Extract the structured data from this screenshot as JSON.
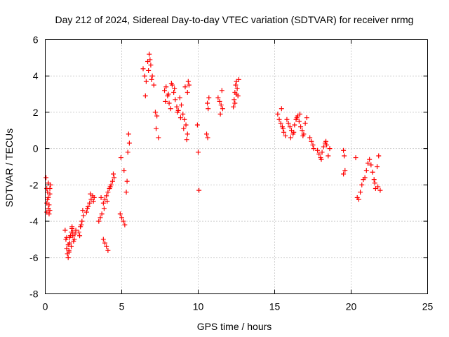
{
  "chart_data": {
    "type": "scatter",
    "title": "Day 212 of 2024, Sidereal Day-to-day VTEC variation (SDTVAR) for receiver nrmg",
    "xlabel": "GPS time / hours",
    "ylabel": "SDTVAR / TECUs",
    "xlim": [
      0,
      25
    ],
    "ylim": [
      -8,
      6
    ],
    "x_ticks": [
      0,
      5,
      10,
      15,
      20,
      25
    ],
    "y_ticks": [
      -8,
      -6,
      -4,
      -2,
      0,
      2,
      4,
      6
    ],
    "x_tick_labels": [
      "0",
      "5",
      "10",
      "15",
      "20",
      "25"
    ],
    "y_tick_labels": [
      "-8",
      "-6",
      "-4",
      "-2",
      "0",
      "2",
      "4",
      "6"
    ],
    "grid": true,
    "marker": "+",
    "color": "#ff0000",
    "series": [
      {
        "name": "SDTVAR",
        "x": [
          0.05,
          0.1,
          0.15,
          0.2,
          0.25,
          0.3,
          0.35,
          0.1,
          0.2,
          0.3,
          0.15,
          0.25,
          0.2,
          0.1,
          0.3,
          1.3,
          1.35,
          1.4,
          1.45,
          1.5,
          1.55,
          1.6,
          1.65,
          1.7,
          1.75,
          1.8,
          1.85,
          1.9,
          1.95,
          2.0,
          1.5,
          1.6,
          1.7,
          1.8,
          1.4,
          1.55,
          1.75,
          2.2,
          2.3,
          2.4,
          2.5,
          2.25,
          2.35,
          2.45,
          2.7,
          2.8,
          2.9,
          3.0,
          3.1,
          3.2,
          2.75,
          2.95,
          3.15,
          3.5,
          3.6,
          3.7,
          3.8,
          3.9,
          4.0,
          4.1,
          4.2,
          4.3,
          4.4,
          4.5,
          4.05,
          4.25,
          4.45,
          3.65,
          3.85,
          3.8,
          3.9,
          4.0,
          4.1,
          4.9,
          5.0,
          5.1,
          5.2,
          4.95,
          5.15,
          5.35,
          5.4,
          5.5,
          5.3,
          5.45,
          6.4,
          6.5,
          6.6,
          6.7,
          6.8,
          6.9,
          7.0,
          7.1,
          6.55,
          6.75,
          6.95,
          6.85,
          7.2,
          7.3,
          7.25,
          7.4,
          7.8,
          7.9,
          8.0,
          8.1,
          8.2,
          8.3,
          8.4,
          8.5,
          8.6,
          8.7,
          8.8,
          8.9,
          9.0,
          9.1,
          9.2,
          9.3,
          7.85,
          8.05,
          8.25,
          8.45,
          8.65,
          8.85,
          9.05,
          9.25,
          9.35,
          9.15,
          9.3,
          9.4,
          9.95,
          10.0,
          10.05,
          10.6,
          10.65,
          10.7,
          10.55,
          10.62,
          11.3,
          11.4,
          11.5,
          11.6,
          11.55,
          11.45,
          12.3,
          12.35,
          12.4,
          12.45,
          12.5,
          12.55,
          12.6,
          12.65,
          12.4,
          12.5,
          15.2,
          15.3,
          15.4,
          15.5,
          15.6,
          15.7,
          15.45,
          15.55,
          15.8,
          15.9,
          16.0,
          16.1,
          16.2,
          16.3,
          16.4,
          16.5,
          16.6,
          16.7,
          16.8,
          16.9,
          17.0,
          17.1,
          16.05,
          16.25,
          16.45,
          16.65,
          16.85,
          17.3,
          17.4,
          17.5,
          17.55,
          17.8,
          17.9,
          18.0,
          18.1,
          18.2,
          18.3,
          18.4,
          18.5,
          18.6,
          18.05,
          18.35,
          19.5,
          19.55,
          19.6,
          19.5,
          20.3,
          20.4,
          20.5,
          20.6,
          20.7,
          20.8,
          20.9,
          21.0,
          21.1,
          21.2,
          21.3,
          21.4,
          21.5,
          21.6,
          21.7,
          21.8,
          21.9,
          21.55,
          21.75
        ],
        "y": [
          -1.6,
          -2.2,
          -2.8,
          -3.3,
          -3.6,
          -2.5,
          -2.0,
          -3.0,
          -1.9,
          -3.4,
          -2.4,
          -3.1,
          -2.7,
          -3.5,
          -2.2,
          -4.5,
          -5.0,
          -5.5,
          -5.8,
          -6.0,
          -5.6,
          -5.2,
          -4.8,
          -4.6,
          -4.4,
          -4.8,
          -5.1,
          -5.0,
          -4.7,
          -4.5,
          -5.3,
          -4.9,
          -5.4,
          -4.6,
          -4.9,
          -5.7,
          -4.3,
          -4.6,
          -4.3,
          -4.0,
          -3.7,
          -4.8,
          -4.2,
          -3.4,
          -3.5,
          -3.2,
          -3.0,
          -2.8,
          -2.6,
          -2.7,
          -3.3,
          -2.5,
          -2.9,
          -4.0,
          -3.8,
          -3.6,
          -3.0,
          -2.8,
          -2.6,
          -2.4,
          -2.2,
          -2.0,
          -1.8,
          -1.6,
          -2.9,
          -2.1,
          -1.4,
          -2.7,
          -3.3,
          -5.0,
          -5.2,
          -5.4,
          -5.6,
          -3.6,
          -3.8,
          -4.0,
          -4.2,
          -0.5,
          -1.2,
          -1.8,
          -0.2,
          0.3,
          -2.4,
          0.8,
          4.4,
          4.0,
          3.7,
          4.8,
          5.2,
          4.6,
          4.0,
          3.5,
          2.9,
          4.3,
          3.8,
          4.9,
          2.0,
          1.8,
          1.1,
          0.6,
          3.2,
          3.4,
          2.9,
          2.5,
          2.2,
          3.5,
          3.1,
          2.7,
          2.3,
          2.1,
          2.8,
          2.4,
          1.9,
          1.6,
          1.3,
          0.8,
          2.6,
          3.0,
          3.6,
          3.3,
          2.0,
          1.7,
          1.1,
          0.5,
          3.7,
          3.4,
          3.1,
          3.5,
          1.3,
          -0.2,
          -2.3,
          2.5,
          2.2,
          2.8,
          0.8,
          0.6,
          2.8,
          2.6,
          2.4,
          2.2,
          3.2,
          1.9,
          2.3,
          2.7,
          3.1,
          3.5,
          3.7,
          3.3,
          2.9,
          3.8,
          2.5,
          3.0,
          1.9,
          1.6,
          1.4,
          1.2,
          0.9,
          0.7,
          2.2,
          1.1,
          1.6,
          1.4,
          1.2,
          1.0,
          0.8,
          1.3,
          1.6,
          1.8,
          1.5,
          1.2,
          1.0,
          0.8,
          1.4,
          1.7,
          0.6,
          0.9,
          1.7,
          1.9,
          0.7,
          0.6,
          0.4,
          0.2,
          0.0,
          -0.1,
          -0.3,
          -0.5,
          -0.2,
          0.1,
          0.3,
          0.2,
          -0.4,
          0.0,
          -0.6,
          0.4,
          -0.1,
          -0.4,
          -1.2,
          -1.4,
          -0.5,
          -2.7,
          -2.8,
          -2.4,
          -2.0,
          -1.7,
          -1.6,
          -1.2,
          -0.8,
          -0.6,
          -0.9,
          -1.3,
          -1.7,
          -2.2,
          -1.0,
          -0.4,
          -2.3,
          -1.9,
          -2.1
        ]
      }
    ]
  }
}
